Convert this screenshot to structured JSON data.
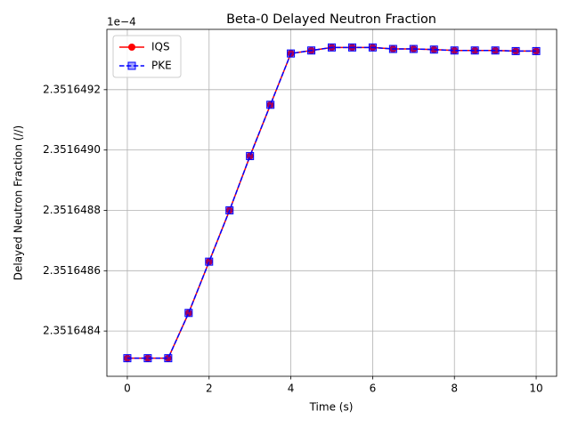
{
  "chart_data": {
    "type": "line",
    "title": "Beta-0 Delayed Neutron Fraction",
    "xlabel": "Time (s)",
    "ylabel": "Delayed Neutron Fraction (//)",
    "y_offset_label": "1e−4",
    "x": [
      0,
      0.5,
      1,
      1.5,
      2,
      2.5,
      3,
      3.5,
      4,
      4.5,
      5,
      5.5,
      6,
      6.5,
      7,
      7.5,
      8,
      8.5,
      9,
      9.5,
      10
    ],
    "series": [
      {
        "name": "IQS",
        "color": "#ff0000",
        "marker": "circle",
        "linestyle": "solid",
        "values": [
          2.35164831,
          2.35164831,
          2.35164831,
          2.35164846,
          2.35164863,
          2.3516488,
          2.35164898,
          2.35164915,
          2.35164932,
          2.35164933,
          2.35164934,
          2.35164934,
          2.35164934,
          2.351649335,
          2.351649335,
          2.351649333,
          2.35164933,
          2.35164933,
          2.35164933,
          2.351649328,
          2.351649328
        ]
      },
      {
        "name": "PKE",
        "color": "#0000ff",
        "marker": "square",
        "linestyle": "dashed",
        "values": [
          2.35164831,
          2.35164831,
          2.35164831,
          2.35164846,
          2.35164863,
          2.3516488,
          2.35164898,
          2.35164915,
          2.35164932,
          2.35164933,
          2.35164934,
          2.35164934,
          2.35164934,
          2.351649335,
          2.351649335,
          2.351649333,
          2.35164933,
          2.35164933,
          2.35164933,
          2.351649328,
          2.351649328
        ]
      }
    ],
    "xlim": [
      -0.5,
      10.5
    ],
    "xticks": [
      0,
      2,
      4,
      6,
      8,
      10
    ],
    "ylim": [
      2.35164825,
      2.3516494
    ],
    "yticks": [
      2.3516484,
      2.3516486,
      2.3516488,
      {
        "value": 2.351649,
        "label": "2.3516490"
      },
      2.3516492
    ],
    "grid": true,
    "legend": "upper-left"
  }
}
